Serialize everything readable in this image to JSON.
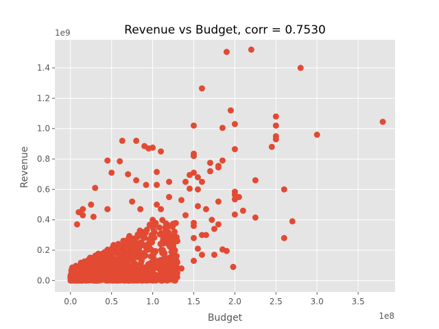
{
  "chart_data": {
    "type": "scatter",
    "title": "Revenue vs Budget, corr = 0.7530",
    "xlabel": "Budget",
    "ylabel": "Revenue",
    "x_offset_label": "1e8",
    "y_offset_label": "1e9",
    "xlim": [
      -0.19,
      3.95
    ],
    "ylim": [
      -0.075,
      1.585
    ],
    "xticks": [
      0.0,
      0.5,
      1.0,
      1.5,
      2.0,
      2.5,
      3.0,
      3.5
    ],
    "xtick_labels": [
      "0.0",
      "0.5",
      "1.0",
      "1.5",
      "2.0",
      "2.5",
      "3.0",
      "3.5"
    ],
    "yticks": [
      0.0,
      0.2,
      0.4,
      0.6,
      0.8,
      1.0,
      1.2,
      1.4
    ],
    "ytick_labels": [
      "0.0",
      "0.2",
      "0.4",
      "0.6",
      "0.8",
      "1.0",
      "1.2",
      "1.4"
    ],
    "grid": true,
    "background_color": "#e5e5e5",
    "marker_color": "#e24a33",
    "highlighted_points": [
      [
        2.2,
        1.52
      ],
      [
        1.9,
        1.505
      ],
      [
        2.8,
        1.4
      ],
      [
        1.6,
        1.265
      ],
      [
        1.95,
        1.12
      ],
      [
        2.5,
        1.08
      ],
      [
        3.8,
        1.045
      ],
      [
        2.0,
        1.03
      ],
      [
        1.5,
        1.02
      ],
      [
        2.5,
        1.02
      ],
      [
        1.85,
        1.005
      ],
      [
        3.0,
        0.96
      ],
      [
        2.5,
        0.95
      ],
      [
        2.5,
        0.93
      ],
      [
        0.63,
        0.92
      ],
      [
        0.8,
        0.92
      ],
      [
        2.45,
        0.88
      ],
      [
        0.9,
        0.885
      ],
      [
        1.0,
        0.875
      ],
      [
        0.95,
        0.87
      ],
      [
        2.0,
        0.865
      ],
      [
        1.1,
        0.85
      ],
      [
        1.5,
        0.835
      ],
      [
        1.5,
        0.82
      ],
      [
        1.85,
        0.79
      ],
      [
        0.45,
        0.79
      ],
      [
        0.6,
        0.785
      ],
      [
        1.7,
        0.775
      ],
      [
        1.8,
        0.755
      ],
      [
        1.8,
        0.745
      ],
      [
        1.7,
        0.72
      ],
      [
        1.05,
        0.715
      ],
      [
        0.5,
        0.71
      ],
      [
        1.5,
        0.71
      ],
      [
        1.45,
        0.695
      ],
      [
        0.7,
        0.7
      ],
      [
        1.55,
        0.68
      ],
      [
        0.8,
        0.66
      ],
      [
        2.25,
        0.66
      ],
      [
        1.2,
        0.65
      ],
      [
        1.6,
        0.65
      ],
      [
        1.4,
        0.65
      ],
      [
        1.05,
        0.63
      ],
      [
        0.92,
        0.63
      ],
      [
        1.55,
        0.6
      ],
      [
        2.6,
        0.6
      ],
      [
        0.3,
        0.61
      ],
      [
        1.45,
        0.605
      ],
      [
        2.0,
        0.585
      ],
      [
        2.0,
        0.565
      ],
      [
        2.05,
        0.55
      ],
      [
        2.0,
        0.535
      ],
      [
        1.2,
        0.55
      ],
      [
        1.35,
        0.53
      ],
      [
        1.8,
        0.52
      ],
      [
        0.75,
        0.52
      ],
      [
        0.25,
        0.5
      ],
      [
        1.05,
        0.5
      ],
      [
        1.55,
        0.49
      ],
      [
        1.65,
        0.47
      ],
      [
        2.1,
        0.46
      ],
      [
        0.85,
        0.47
      ],
      [
        0.45,
        0.47
      ],
      [
        1.1,
        0.47
      ],
      [
        1.4,
        0.43
      ],
      [
        2.0,
        0.435
      ],
      [
        2.25,
        0.415
      ],
      [
        1.72,
        0.4
      ],
      [
        2.7,
        0.39
      ],
      [
        1.5,
        0.38
      ],
      [
        1.8,
        0.37
      ],
      [
        1.5,
        0.36
      ],
      [
        1.75,
        0.34
      ],
      [
        1.6,
        0.3
      ],
      [
        1.65,
        0.3
      ],
      [
        1.5,
        0.28
      ],
      [
        2.6,
        0.28
      ],
      [
        1.3,
        0.26
      ],
      [
        1.25,
        0.25
      ],
      [
        1.55,
        0.21
      ],
      [
        1.85,
        0.205
      ],
      [
        1.9,
        0.195
      ],
      [
        1.6,
        0.17
      ],
      [
        1.75,
        0.17
      ],
      [
        1.5,
        0.13
      ],
      [
        1.3,
        0.12
      ],
      [
        1.2,
        0.1
      ],
      [
        1.98,
        0.09
      ],
      [
        1.35,
        0.08
      ],
      [
        1.3,
        0.05
      ],
      [
        1.2,
        0.05
      ],
      [
        1.1,
        0.02
      ],
      [
        0.95,
        0.01
      ],
      [
        1.0,
        0.0
      ],
      [
        1.0,
        0.4
      ],
      [
        0.15,
        0.47
      ],
      [
        0.1,
        0.45
      ],
      [
        0.28,
        0.42
      ],
      [
        0.08,
        0.37
      ],
      [
        0.15,
        0.43
      ]
    ],
    "dense_cluster": {
      "point_count": 900,
      "x_range": [
        0.0,
        1.3
      ],
      "y_range": [
        0.0,
        0.4
      ]
    }
  }
}
